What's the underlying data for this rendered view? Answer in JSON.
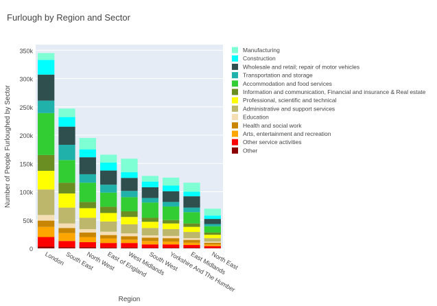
{
  "chart_data": {
    "type": "bar",
    "stacked": true,
    "title": "Furlough by Region and Sector",
    "xlabel": "Region",
    "ylabel": "Number of People Furloughed by Sector",
    "ylim": [
      0,
      360000
    ],
    "yticks": [
      0,
      50000,
      100000,
      150000,
      200000,
      250000,
      300000,
      350000
    ],
    "ytick_labels": [
      "0",
      "50k",
      "100k",
      "150k",
      "200k",
      "250k",
      "300k",
      "350k"
    ],
    "grid": true,
    "legend_position": "right",
    "categories": [
      "London",
      "South East",
      "North West",
      "East of England",
      "West Midlands",
      "South West",
      "Yorkshire And The Humber",
      "East Midlands",
      "North East"
    ],
    "series": [
      {
        "name": "Other",
        "color": "#8b0000",
        "values": [
          3000,
          2000,
          2000,
          1500,
          1500,
          1000,
          1000,
          1000,
          500
        ]
      },
      {
        "name": "Other service activities",
        "color": "#ff0000",
        "values": [
          17000,
          11000,
          9000,
          8000,
          8000,
          6000,
          6000,
          5000,
          3500
        ]
      },
      {
        "name": "Arts, entertainment and recreation",
        "color": "#ffa500",
        "values": [
          18000,
          14000,
          9000,
          8000,
          6000,
          6000,
          5000,
          4000,
          3000
        ]
      },
      {
        "name": "Health and social work",
        "color": "#c88600",
        "values": [
          11000,
          9000,
          8000,
          6000,
          6000,
          6000,
          6000,
          5000,
          3000
        ]
      },
      {
        "name": "Education",
        "color": "#f5deb3",
        "values": [
          10000,
          8000,
          6000,
          6000,
          5000,
          4000,
          4000,
          3000,
          2000
        ]
      },
      {
        "name": "Administrative and support services",
        "color": "#bdb76b",
        "values": [
          45000,
          28000,
          20000,
          18000,
          16000,
          13000,
          12000,
          11000,
          6000
        ]
      },
      {
        "name": "Professional, scientific and technical",
        "color": "#ffff00",
        "values": [
          33000,
          25000,
          17000,
          15000,
          13000,
          11000,
          10000,
          9000,
          6000
        ]
      },
      {
        "name": "Information and communication, Financial and insurance & Real estate",
        "color": "#6b8e23",
        "values": [
          28000,
          19000,
          11000,
          11000,
          10000,
          7000,
          6000,
          6000,
          4000
        ]
      },
      {
        "name": "Accommodation and food services",
        "color": "#32cd32",
        "values": [
          74000,
          40000,
          34000,
          25000,
          25000,
          27000,
          24000,
          20000,
          11000
        ]
      },
      {
        "name": "Transportation and storage",
        "color": "#20b2aa",
        "values": [
          22000,
          27000,
          15000,
          14000,
          11000,
          8000,
          8000,
          8000,
          4000
        ]
      },
      {
        "name": "Wholesale and retail; repair of motor vehicles",
        "color": "#2f4f4f",
        "values": [
          46000,
          32000,
          30000,
          25000,
          23000,
          19000,
          19000,
          20000,
          9000
        ]
      },
      {
        "name": "Construction",
        "color": "#00ffff",
        "values": [
          26000,
          17000,
          14000,
          14000,
          10000,
          10000,
          10000,
          8000,
          6000
        ]
      },
      {
        "name": "Manufacturing",
        "color": "#7fffd4",
        "values": [
          12000,
          15000,
          20000,
          14000,
          24000,
          10000,
          14000,
          16000,
          12000
        ]
      }
    ]
  }
}
